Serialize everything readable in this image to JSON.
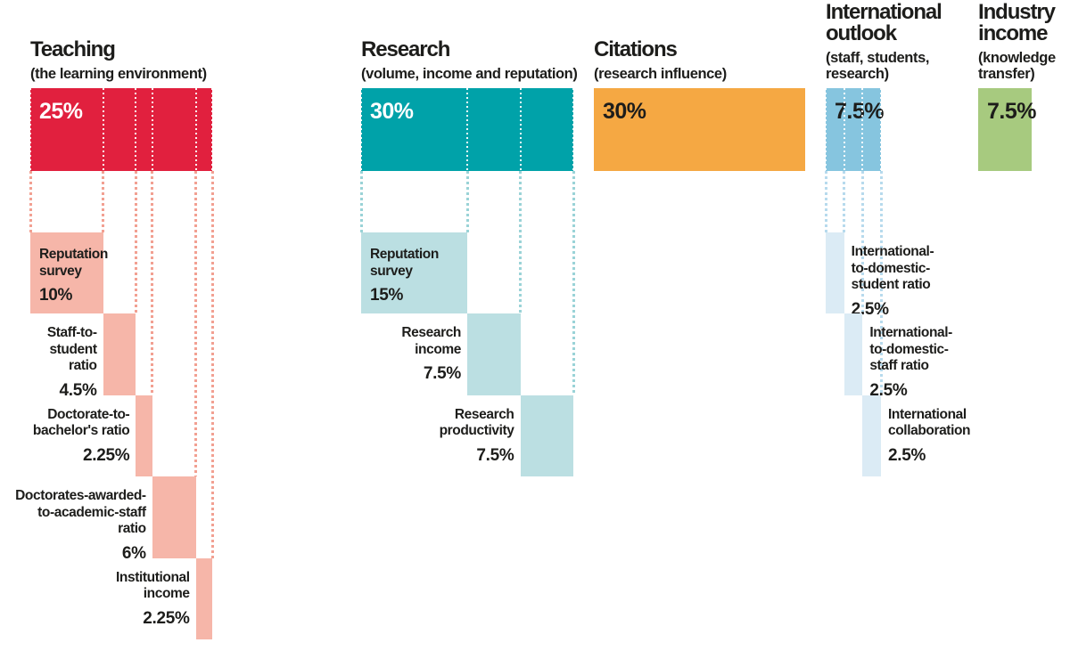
{
  "chart_data": {
    "type": "bar",
    "unit": "percent",
    "description_text_color": "#1d1d1b",
    "categories": [
      {
        "name": "Teaching",
        "subtitle": "(the learning environment)",
        "weight_label": "25%",
        "weight": 25,
        "color": "#E1203E",
        "sub_color": "#F6B6A9",
        "dot_color": "#F2A092",
        "weight_label_color": "#FFFFFF",
        "components": [
          {
            "label": "Reputation\nsurvey",
            "value_label": "10%",
            "value": 10,
            "label_side": "inside"
          },
          {
            "label": "Staff-to-\nstudent\nratio",
            "value_label": "4.5%",
            "value": 4.5,
            "label_side": "left"
          },
          {
            "label": "Doctorate-to-\nbachelor's ratio",
            "value_label": "2.25%",
            "value": 2.25,
            "label_side": "left"
          },
          {
            "label": "Doctorates-awarded-\nto-academic-staff\nratio",
            "value_label": "6%",
            "value": 6,
            "label_side": "left"
          },
          {
            "label": "Institutional\nincome",
            "value_label": "2.25%",
            "value": 2.25,
            "label_side": "left"
          }
        ]
      },
      {
        "name": "Research",
        "subtitle": "(volume, income and reputation)",
        "weight_label": "30%",
        "weight": 30,
        "color": "#00A2A9",
        "sub_color": "#BBDFE2",
        "dot_color": "#9AD3D7",
        "weight_label_color": "#FFFFFF",
        "components": [
          {
            "label": "Reputation\nsurvey",
            "value_label": "15%",
            "value": 15,
            "label_side": "inside"
          },
          {
            "label": "Research\nincome",
            "value_label": "7.5%",
            "value": 7.5,
            "label_side": "left"
          },
          {
            "label": "Research\nproductivity",
            "value_label": "7.5%",
            "value": 7.5,
            "label_side": "left"
          }
        ]
      },
      {
        "name": "Citations",
        "subtitle": "(research influence)",
        "weight_label": "30%",
        "weight": 30,
        "color": "#F5A843",
        "sub_color": "#F5A843",
        "dot_color": "#F5A843",
        "weight_label_color": "#1D1D1B",
        "components": []
      },
      {
        "name": "International\noutlook",
        "subtitle": "(staff, students,\nresearch)",
        "weight_label": "7.5%",
        "weight": 7.5,
        "color": "#86C5DF",
        "sub_color": "#DBEBF5",
        "dot_color": "#B7DAED",
        "weight_label_color": "#1D1D1B",
        "components": [
          {
            "label": "International-\nto-domestic-\nstudent ratio",
            "value_label": "2.5%",
            "value": 2.5,
            "label_side": "right"
          },
          {
            "label": "International-\nto-domestic-\nstaff ratio",
            "value_label": "2.5%",
            "value": 2.5,
            "label_side": "right"
          },
          {
            "label": "International\ncollaboration",
            "value_label": "2.5%",
            "value": 2.5,
            "label_side": "right"
          }
        ]
      },
      {
        "name": "Industry\nincome",
        "subtitle": "(knowledge\ntransfer)",
        "weight_label": "7.5%",
        "weight": 7.5,
        "color": "#A7CA7F",
        "sub_color": "#A7CA7F",
        "dot_color": "#A7CA7F",
        "weight_label_color": "#1D1D1B",
        "components": []
      }
    ]
  }
}
